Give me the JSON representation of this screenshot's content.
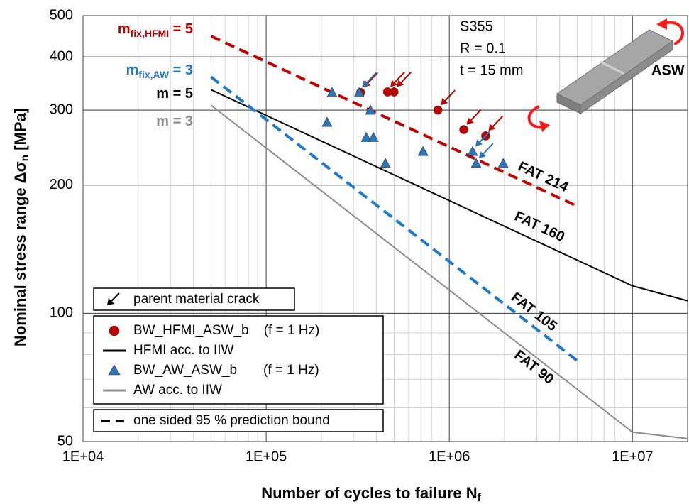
{
  "chart_data": {
    "type": "scatter",
    "xscale": "log",
    "yscale": "log",
    "xlim": [
      10000,
      20000000
    ],
    "ylim": [
      50,
      500
    ],
    "xticks": [
      {
        "value": 10000,
        "label": "1E+04"
      },
      {
        "value": 100000,
        "label": "1E+05"
      },
      {
        "value": 1000000,
        "label": "1E+06"
      },
      {
        "value": 10000000,
        "label": "1E+07"
      }
    ],
    "yticks": [
      50,
      100,
      200,
      300,
      400,
      500
    ],
    "grid": true,
    "minor_grid": true,
    "xlabel": {
      "text": "Number of cycles to failure N",
      "sub": "f"
    },
    "ylabel": {
      "text": "Nominal stress range Δσ",
      "sub": "n",
      "rest": " [MPa]"
    },
    "series": [
      {
        "kind": "line",
        "name": "HFMI acc. to IIW",
        "label": "FAT 160",
        "color": "#000000",
        "dashed": false,
        "x": [
          50000,
          10000000,
          20000000
        ],
        "values": [
          335,
          116,
          107
        ]
      },
      {
        "kind": "line",
        "name": "AW acc. to IIW",
        "label": "FAT 90",
        "color": "#8c8c8c",
        "dashed": false,
        "x": [
          50000,
          10000000,
          20000000
        ],
        "values": [
          308,
          52.6,
          50.8
        ]
      },
      {
        "kind": "line",
        "label": "FAT 214",
        "color": "#c00000",
        "dashed": true,
        "x": [
          50000,
          5000000
        ],
        "values": [
          447.5,
          178.4
        ]
      },
      {
        "kind": "line",
        "label": "FAT 105",
        "color": "#1f78c8",
        "dashed": true,
        "x": [
          50000,
          5000000
        ],
        "values": [
          359,
          77.4
        ]
      },
      {
        "kind": "points",
        "marker": "circle",
        "name": "BW_HFMI_ASW_b    (f = 1 Hz)",
        "color": "#c00000",
        "x": [
          328000,
          460000,
          499000,
          867000,
          1200000,
          1580000
        ],
        "values": [
          330,
          331,
          331,
          300,
          270,
          261
        ],
        "parent_material_crack": [
          true,
          true,
          true,
          true,
          true,
          true
        ]
      },
      {
        "kind": "points",
        "marker": "triangle",
        "name": "BW_AW_ASW_b       (f = 1 Hz)",
        "color": "#2e75b6",
        "x": [
          229000,
          215000,
          322000,
          371000,
          352000,
          385000,
          448000,
          719000,
          1340000,
          1400000,
          1970000
        ],
        "values": [
          330,
          281,
          330,
          300,
          259,
          259,
          225,
          240,
          240,
          225,
          225
        ],
        "parent_material_crack": [
          false,
          false,
          true,
          false,
          false,
          false,
          false,
          false,
          true,
          true,
          false
        ]
      }
    ],
    "legend_crack": "parent material crack",
    "legend_note": "one sided 95 % prediction bound",
    "slope_labels": [
      {
        "text": "m",
        "sub": "fix,HFMI",
        "rest": " = 5",
        "color": "#c00000"
      },
      {
        "text": "m",
        "sub": "fix,AW",
        "rest": " = 3",
        "color": "#1f78c8"
      },
      {
        "text": "m = 5",
        "color": "#000000"
      },
      {
        "text": "m = 3",
        "color": "#8c8c8c"
      }
    ],
    "material": [
      "S355",
      "R = 0.1",
      "t = 15 mm"
    ],
    "specimen_label": "ASW"
  }
}
